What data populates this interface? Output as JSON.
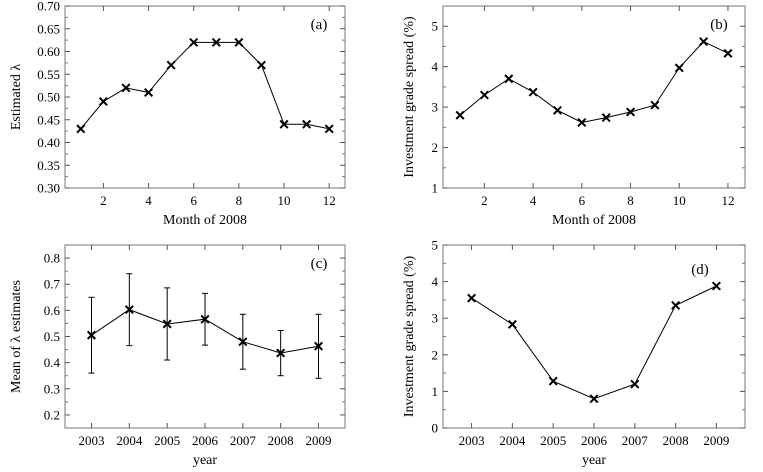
{
  "chart_data": [
    {
      "type": "line",
      "panel": "(a)",
      "title": "",
      "xlabel": "Month of 2008",
      "ylabel": "Estimated λ",
      "xlim": [
        0.3,
        12.7
      ],
      "ylim": [
        0.3,
        0.7
      ],
      "xticks": [
        2,
        4,
        6,
        8,
        10,
        12
      ],
      "xtick_labels": [
        "2",
        "4",
        "6",
        "8",
        "10",
        "12"
      ],
      "yticks": [
        0.3,
        0.35,
        0.4,
        0.45,
        0.5,
        0.55,
        0.6,
        0.65,
        0.7
      ],
      "ytick_labels": [
        "0.30",
        "0.35",
        "0.40",
        "0.45",
        "0.50",
        "0.55",
        "0.60",
        "0.65",
        "0.70"
      ],
      "x": [
        1,
        2,
        3,
        4,
        5,
        6,
        7,
        8,
        9,
        10,
        11,
        12
      ],
      "y": [
        0.43,
        0.49,
        0.52,
        0.51,
        0.57,
        0.62,
        0.62,
        0.62,
        0.57,
        0.44,
        0.44,
        0.43
      ],
      "marker": "x",
      "grid": false
    },
    {
      "type": "line",
      "panel": "(b)",
      "title": "",
      "xlabel": "Month of 2008",
      "ylabel": "Investment grade spread (%)",
      "xlim": [
        0.3,
        12.7
      ],
      "ylim": [
        1,
        5.5
      ],
      "xticks": [
        2,
        4,
        6,
        8,
        10,
        12
      ],
      "xtick_labels": [
        "2",
        "4",
        "6",
        "8",
        "10",
        "12"
      ],
      "yticks": [
        1,
        2,
        3,
        4,
        5
      ],
      "ytick_labels": [
        "1",
        "2",
        "3",
        "4",
        "5"
      ],
      "x": [
        1,
        2,
        3,
        4,
        5,
        6,
        7,
        8,
        9,
        10,
        11,
        12
      ],
      "y": [
        2.8,
        3.3,
        3.7,
        3.37,
        2.92,
        2.62,
        2.74,
        2.88,
        3.05,
        3.97,
        4.62,
        4.33
      ],
      "marker": "x",
      "grid": false
    },
    {
      "type": "errorbar",
      "panel": "(c)",
      "title": "",
      "xlabel": "year",
      "ylabel": "Mean of λ estimates",
      "xlim": [
        2002.3,
        2009.7
      ],
      "ylim": [
        0.15,
        0.85
      ],
      "xticks": [
        2003,
        2004,
        2005,
        2006,
        2007,
        2008,
        2009
      ],
      "xtick_labels": [
        "2003",
        "2004",
        "2005",
        "2006",
        "2007",
        "2008",
        "2009"
      ],
      "yticks": [
        0.2,
        0.3,
        0.4,
        0.5,
        0.6,
        0.7,
        0.8
      ],
      "ytick_labels": [
        "0.2",
        "0.3",
        "0.4",
        "0.5",
        "0.6",
        "0.7",
        "0.8"
      ],
      "x": [
        2003,
        2004,
        2005,
        2006,
        2007,
        2008,
        2009
      ],
      "y": [
        0.505,
        0.603,
        0.548,
        0.566,
        0.48,
        0.437,
        0.463
      ],
      "err_low": [
        0.36,
        0.465,
        0.41,
        0.467,
        0.375,
        0.35,
        0.34
      ],
      "err_high": [
        0.65,
        0.74,
        0.686,
        0.665,
        0.585,
        0.523,
        0.585
      ],
      "marker": "x",
      "grid": false
    },
    {
      "type": "line",
      "panel": "(d)",
      "title": "",
      "xlabel": "year",
      "ylabel": "Investment grade spread (%)",
      "xlim": [
        2002.3,
        2009.7
      ],
      "ylim": [
        0,
        5
      ],
      "xticks": [
        2003,
        2004,
        2005,
        2006,
        2007,
        2008,
        2009
      ],
      "xtick_labels": [
        "2003",
        "2004",
        "2005",
        "2006",
        "2007",
        "2008",
        "2009"
      ],
      "yticks": [
        0,
        1,
        2,
        3,
        4,
        5
      ],
      "ytick_labels": [
        "0",
        "1",
        "2",
        "3",
        "4",
        "5"
      ],
      "x": [
        2003,
        2004,
        2005,
        2006,
        2007,
        2008,
        2009
      ],
      "y": [
        3.55,
        2.83,
        1.28,
        0.8,
        1.2,
        3.35,
        3.88
      ],
      "marker": "x",
      "grid": false
    }
  ]
}
